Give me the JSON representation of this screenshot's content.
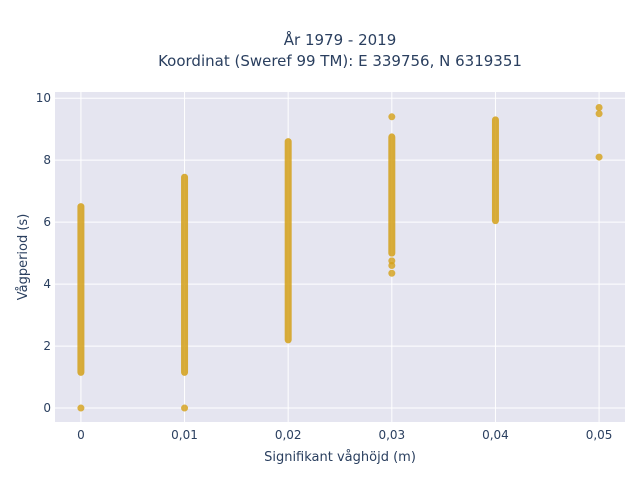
{
  "chart_data": {
    "type": "scatter",
    "title_line1": "År 1979 - 2019",
    "title_line2": "Koordinat (Sweref 99 TM): E 339756, N 6319351",
    "xlabel": "Signifikant våghöjd (m)",
    "ylabel": "Vågperiod (s)",
    "xlim": [
      -0.0025,
      0.0525
    ],
    "ylim": [
      -0.45,
      10.2
    ],
    "x_ticks": [
      0,
      0.01,
      0.02,
      0.03,
      0.04,
      0.05
    ],
    "x_tick_labels": [
      "0",
      "0,01",
      "0,02",
      "0,03",
      "0,04",
      "0,05"
    ],
    "y_ticks": [
      0,
      2,
      4,
      6,
      8,
      10
    ],
    "y_tick_labels": [
      "0",
      "2",
      "4",
      "6",
      "8",
      "10"
    ],
    "marker_color": "#D4A017",
    "plot_bg": "#E5E5F0",
    "grid_color": "#FFFFFF",
    "grid": true,
    "series": [
      {
        "x": 0,
        "ranges": [
          [
            1.15,
            6.5
          ]
        ],
        "points": [
          0
        ]
      },
      {
        "x": 0.01,
        "ranges": [
          [
            1.15,
            7.45
          ]
        ],
        "points": [
          0
        ]
      },
      {
        "x": 0.02,
        "ranges": [
          [
            2.2,
            8.6
          ]
        ],
        "points": []
      },
      {
        "x": 0.03,
        "ranges": [
          [
            5.0,
            8.75
          ]
        ],
        "points": [
          4.35,
          4.6,
          4.75,
          9.4
        ]
      },
      {
        "x": 0.04,
        "ranges": [
          [
            6.05,
            9.3
          ]
        ],
        "points": []
      },
      {
        "x": 0.05,
        "ranges": [],
        "points": [
          8.1,
          9.5,
          9.7
        ]
      }
    ]
  }
}
